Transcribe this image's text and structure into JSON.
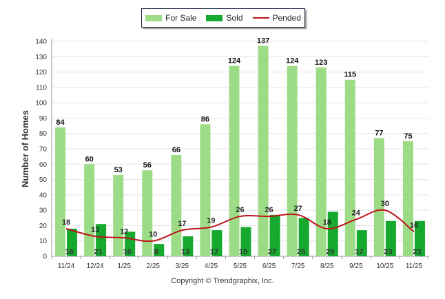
{
  "legend": {
    "for_sale": "For Sale",
    "sold": "Sold",
    "pended": "Pended"
  },
  "colors": {
    "for_sale": "#9ddc86",
    "sold": "#17a92f",
    "pended": "#c0121c",
    "grid": "#e4e4e4",
    "axis": "#999999",
    "text": "#333333"
  },
  "copyright": "Copyright © Trendgraphix, Inc.",
  "chart_data": {
    "type": "bar",
    "title": "",
    "xlabel": "",
    "ylabel": "Number of Homes",
    "ylim": [
      0,
      140
    ],
    "yticks": [
      0,
      10,
      20,
      30,
      40,
      50,
      60,
      70,
      80,
      90,
      100,
      110,
      120,
      130,
      140
    ],
    "categories": [
      "11/24",
      "12/24",
      "1/25",
      "2/25",
      "3/25",
      "4/25",
      "5/25",
      "6/25",
      "7/25",
      "8/25",
      "9/25",
      "10/25",
      "11/25"
    ],
    "series": [
      {
        "name": "For Sale",
        "kind": "bar",
        "values": [
          84,
          60,
          53,
          56,
          66,
          86,
          124,
          137,
          124,
          123,
          115,
          77,
          75
        ]
      },
      {
        "name": "Sold",
        "kind": "bar",
        "values": [
          18,
          21,
          16,
          8,
          13,
          17,
          19,
          27,
          25,
          29,
          17,
          23,
          23
        ]
      },
      {
        "name": "Pended",
        "kind": "line",
        "values": [
          18,
          13,
          12,
          10,
          17,
          19,
          26,
          26,
          27,
          18,
          24,
          30,
          16
        ]
      }
    ]
  }
}
